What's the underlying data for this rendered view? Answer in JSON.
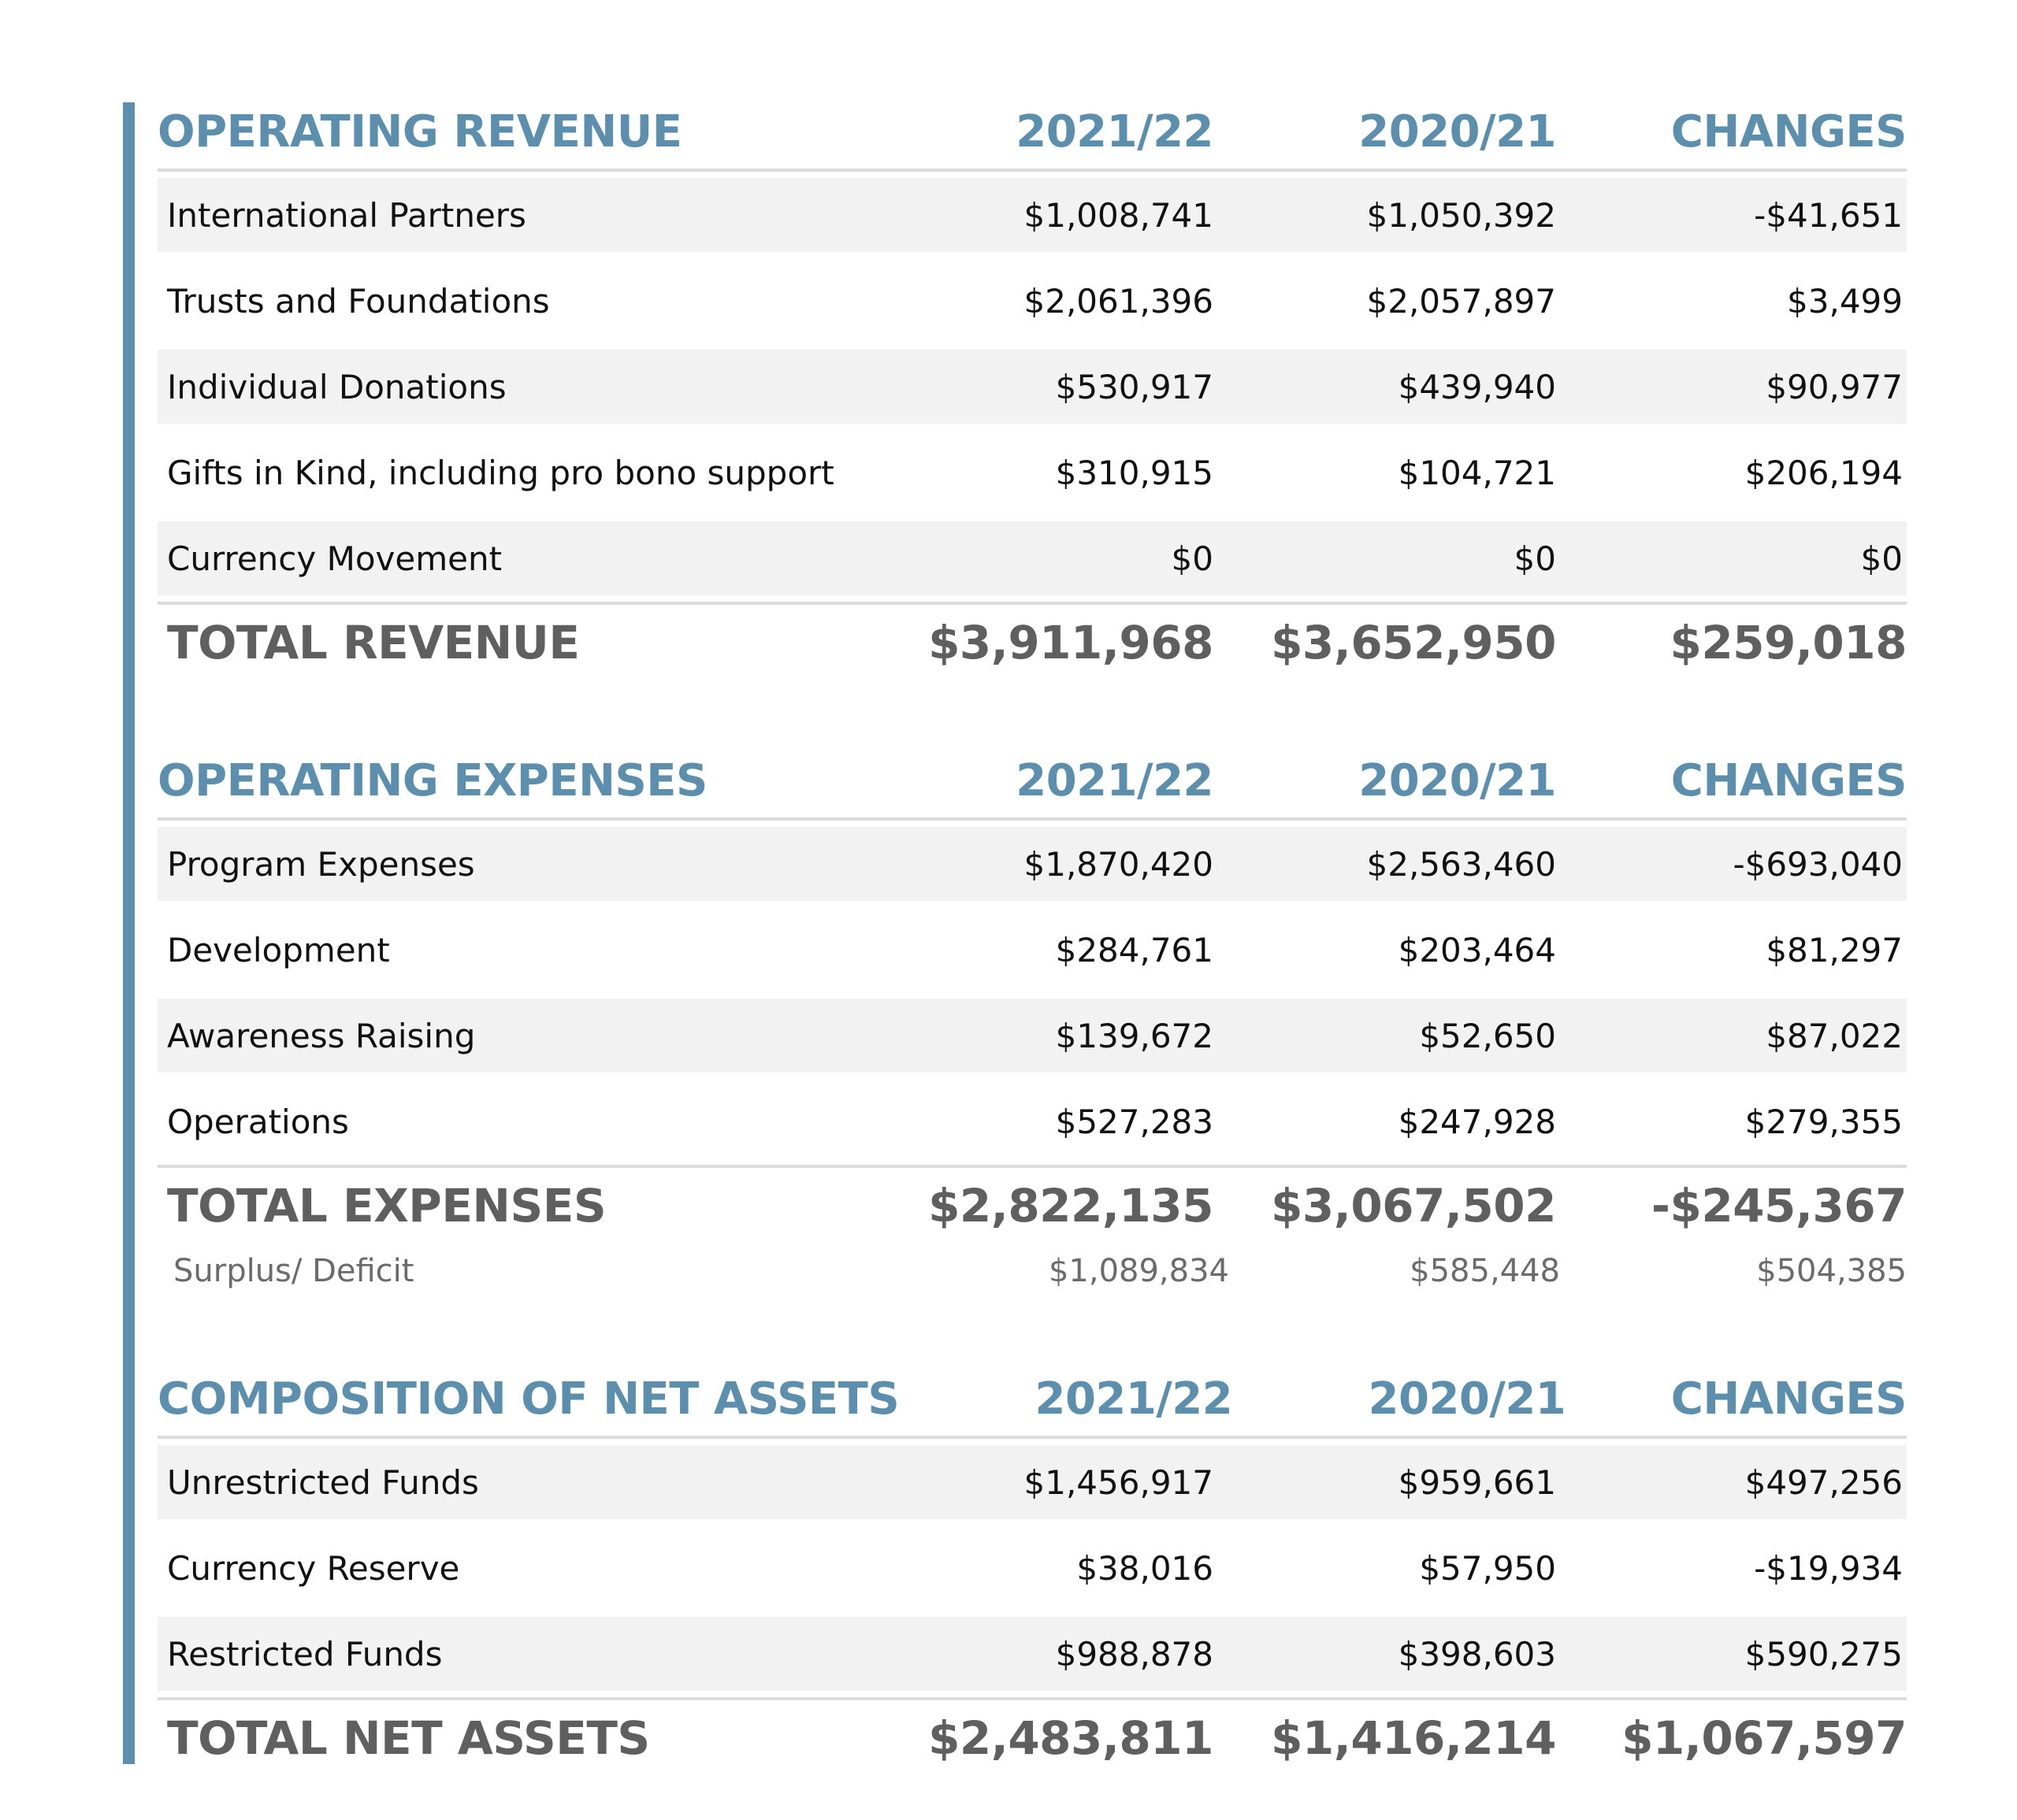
{
  "accent_color": "#5b8fad",
  "revenue": {
    "title": "OPERATING REVENUE",
    "col1": "2021/22",
    "col2": "2020/21",
    "col3": "CHANGES",
    "rows": [
      {
        "label": "International Partners",
        "v1": "$1,008,741",
        "v2": "$1,050,392",
        "v3": "-$41,651"
      },
      {
        "label": "Trusts and Foundations",
        "v1": "$2,061,396",
        "v2": "$2,057,897",
        "v3": "$3,499"
      },
      {
        "label": "Individual Donations",
        "v1": "$530,917",
        "v2": "$439,940",
        "v3": "$90,977"
      },
      {
        "label": "Gifts in Kind, including pro bono support",
        "v1": "$310,915",
        "v2": "$104,721",
        "v3": "$206,194"
      },
      {
        "label": "Currency Movement",
        "v1": "$0",
        "v2": "$0",
        "v3": "$0"
      }
    ],
    "total": {
      "label": "TOTAL REVENUE",
      "v1": "$3,911,968",
      "v2": "$3,652,950",
      "v3": "$259,018"
    }
  },
  "expenses": {
    "title": "OPERATING EXPENSES",
    "col1": "2021/22",
    "col2": "2020/21",
    "col3": "CHANGES",
    "rows": [
      {
        "label": "Program Expenses",
        "v1": "$1,870,420",
        "v2": "$2,563,460",
        "v3": "-$693,040"
      },
      {
        "label": "Development",
        "v1": "$284,761",
        "v2": "$203,464",
        "v3": "$81,297"
      },
      {
        "label": "Awareness Raising",
        "v1": "$139,672",
        "v2": "$52,650",
        "v3": "$87,022"
      },
      {
        "label": "Operations",
        "v1": "$527,283",
        "v2": "$247,928",
        "v3": "$279,355"
      }
    ],
    "total": {
      "label": "TOTAL EXPENSES",
      "v1": "$2,822,135",
      "v2": "$3,067,502",
      "v3": "-$245,367"
    },
    "surplus": {
      "label": "Surplus/ Deficit",
      "v1": "$1,089,834",
      "v2": "$585,448",
      "v3": "$504,385"
    }
  },
  "net_assets": {
    "title": "COMPOSITION OF NET ASSETS",
    "col1": "2021/22",
    "col2": "2020/21",
    "col3": "CHANGES",
    "rows": [
      {
        "label": "Unrestricted Funds",
        "v1": "$1,456,917",
        "v2": "$959,661",
        "v3": "$497,256"
      },
      {
        "label": "Currency Reserve",
        "v1": "$38,016",
        "v2": "$57,950",
        "v3": "-$19,934"
      },
      {
        "label": "Restricted Funds",
        "v1": "$988,878",
        "v2": "$398,603",
        "v3": "$590,275"
      }
    ],
    "total": {
      "label": "TOTAL NET ASSETS",
      "v1": "$2,483,811",
      "v2": "$1,416,214",
      "v3": "$1,067,597"
    }
  }
}
